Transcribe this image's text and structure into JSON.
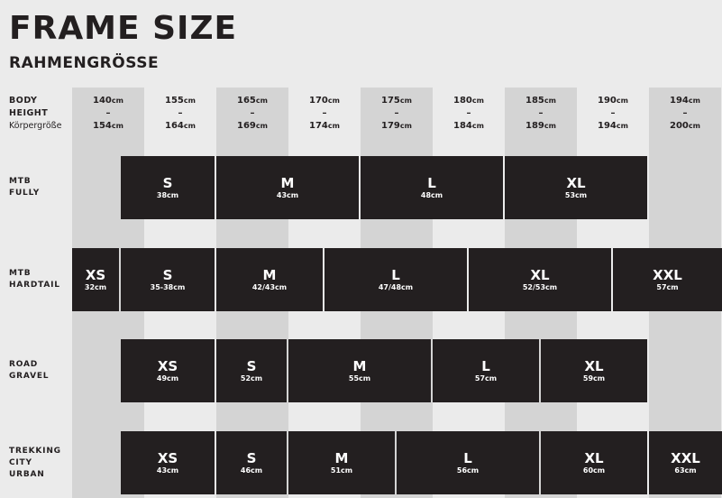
{
  "title": "FRAME SIZE",
  "subtitle": "RAHMENGRÖSSE",
  "height_label": {
    "line1": "BODY",
    "line2": "HEIGHT",
    "line3": "Körpergröße"
  },
  "heights": [
    {
      "from": "140",
      "to": "154"
    },
    {
      "from": "155",
      "to": "164"
    },
    {
      "from": "165",
      "to": "169"
    },
    {
      "from": "170",
      "to": "174"
    },
    {
      "from": "175",
      "to": "179"
    },
    {
      "from": "180",
      "to": "184"
    },
    {
      "from": "185",
      "to": "189"
    },
    {
      "from": "190",
      "to": "194"
    },
    {
      "from": "194",
      "to": "200"
    }
  ],
  "unit": "cm",
  "dash": "–",
  "rows": [
    {
      "label": [
        "MTB",
        "FULLY"
      ],
      "sizes": [
        {
          "size": "S",
          "cm": "38cm"
        },
        {
          "size": "M",
          "cm": "43cm"
        },
        {
          "size": "L",
          "cm": "48cm"
        },
        {
          "size": "XL",
          "cm": "53cm"
        }
      ]
    },
    {
      "label": [
        "MTB",
        "HARDTAIL"
      ],
      "sizes": [
        {
          "size": "XS",
          "cm": "32cm"
        },
        {
          "size": "S",
          "cm": "35-38cm"
        },
        {
          "size": "M",
          "cm": "42/43cm"
        },
        {
          "size": "L",
          "cm": "47/48cm"
        },
        {
          "size": "XL",
          "cm": "52/53cm"
        },
        {
          "size": "XXL",
          "cm": "57cm"
        }
      ]
    },
    {
      "label": [
        "ROAD",
        "GRAVEL"
      ],
      "sizes": [
        {
          "size": "XS",
          "cm": "49cm"
        },
        {
          "size": "S",
          "cm": "52cm"
        },
        {
          "size": "M",
          "cm": "55cm"
        },
        {
          "size": "L",
          "cm": "57cm"
        },
        {
          "size": "XL",
          "cm": "59cm"
        }
      ]
    },
    {
      "label": [
        "TREKKING",
        "CITY",
        "URBAN"
      ],
      "sizes": [
        {
          "size": "XS",
          "cm": "43cm"
        },
        {
          "size": "S",
          "cm": "46cm"
        },
        {
          "size": "M",
          "cm": "51cm"
        },
        {
          "size": "L",
          "cm": "56cm"
        },
        {
          "size": "XL",
          "cm": "60cm"
        },
        {
          "size": "XXL",
          "cm": "63cm"
        }
      ]
    }
  ]
}
